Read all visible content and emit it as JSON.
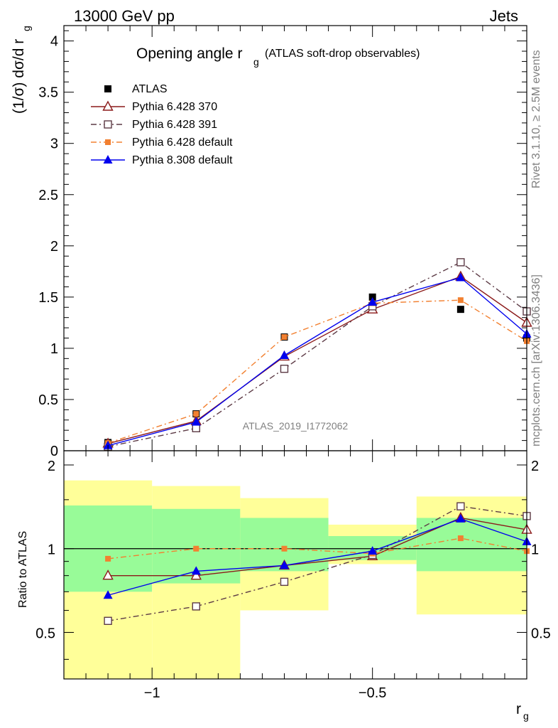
{
  "header": {
    "energy_label": "13000 GeV pp",
    "process_label": "Jets",
    "side_label_top": "Rivet 3.1.10, ≥ 2.5M events",
    "side_label_bottom": "mcplots.cern.ch [arXiv:1306.3436]",
    "analysis_id": "ATLAS_2019_I1772062"
  },
  "chart_data": [
    {
      "type": "line",
      "title_main": "Opening angle r",
      "title_sub": "g",
      "title_paren": "(ATLAS soft-drop observables)",
      "ylabel": "(1/σ) dσ/d r",
      "ylabel_sub": "g",
      "xlim": [
        -1.2,
        -0.15
      ],
      "ylim": [
        0,
        4.15
      ],
      "yticks": [
        0,
        0.5,
        1,
        1.5,
        2,
        2.5,
        3,
        3.5,
        4
      ],
      "ytick_labels": [
        "0",
        "0.5",
        "1",
        "1.5",
        "2",
        "2.5",
        "3",
        "3.5",
        "4"
      ],
      "x": [
        -1.1,
        -0.9,
        -0.7,
        -0.5,
        -0.3,
        -0.15
      ],
      "series": [
        {
          "name": "ATLAS",
          "color": "#000000",
          "marker": "filled-square",
          "line": "none",
          "values": [
            0.08,
            0.36,
            1.11,
            1.5,
            1.38,
            1.1
          ]
        },
        {
          "name": "Pythia 6.428 370",
          "color": "#8b1a1a",
          "marker": "open-triangle",
          "line": "solid",
          "values": [
            0.07,
            0.29,
            0.92,
            1.38,
            1.7,
            1.25
          ]
        },
        {
          "name": "Pythia 6.428 391",
          "color": "#5c3a45",
          "marker": "open-square",
          "line": "dashdot",
          "values": [
            0.04,
            0.22,
            0.8,
            1.41,
            1.84,
            1.36
          ]
        },
        {
          "name": "Pythia 6.428 default",
          "color": "#f28030",
          "marker": "filled-square-small",
          "line": "dashdot",
          "values": [
            0.075,
            0.36,
            1.11,
            1.44,
            1.47,
            1.07
          ]
        },
        {
          "name": "Pythia 8.308 default",
          "color": "#0000ee",
          "marker": "filled-triangle",
          "line": "solid",
          "values": [
            0.05,
            0.28,
            0.93,
            1.45,
            1.69,
            1.14
          ]
        }
      ]
    },
    {
      "type": "line",
      "ylabel": "Ratio to ATLAS",
      "xlabel": "r",
      "xlabel_sub": "g",
      "xlim": [
        -1.2,
        -0.15
      ],
      "ylim": [
        0.34,
        2.25
      ],
      "xticks": [
        -1,
        -0.5
      ],
      "xtick_labels": [
        "−1",
        "−0.5"
      ],
      "yticks": [
        0.5,
        1,
        2
      ],
      "ytick_labels": [
        "0.5",
        "1",
        "2"
      ],
      "bands": [
        {
          "x_low": -1.2,
          "x_high": -1.0,
          "green": [
            0.7,
            1.43
          ],
          "yellow": [
            0.34,
            1.76
          ]
        },
        {
          "x_low": -1.0,
          "x_high": -0.8,
          "green": [
            0.75,
            1.39
          ],
          "yellow": [
            0.34,
            1.68
          ]
        },
        {
          "x_low": -0.8,
          "x_high": -0.6,
          "green": [
            0.83,
            1.29
          ],
          "yellow": [
            0.6,
            1.52
          ]
        },
        {
          "x_low": -0.6,
          "x_high": -0.4,
          "green": [
            0.91,
            1.11
          ],
          "yellow": [
            0.88,
            1.22
          ]
        },
        {
          "x_low": -0.4,
          "x_high": -0.15,
          "green": [
            0.83,
            1.29
          ],
          "yellow": [
            0.58,
            1.54
          ]
        }
      ],
      "x": [
        -1.1,
        -0.9,
        -0.7,
        -0.5,
        -0.3,
        -0.15
      ],
      "series": [
        {
          "name": "Pythia 6.428 370",
          "color": "#8b1a1a",
          "marker": "open-triangle",
          "line": "solid",
          "values": [
            0.8,
            0.8,
            0.87,
            0.94,
            1.29,
            1.17
          ]
        },
        {
          "name": "Pythia 6.428 391",
          "color": "#5c3a45",
          "marker": "open-square",
          "line": "dashdot",
          "values": [
            0.55,
            0.62,
            0.76,
            0.95,
            1.42,
            1.31
          ]
        },
        {
          "name": "Pythia 6.428 default",
          "color": "#f28030",
          "marker": "filled-square-small",
          "line": "dashdot",
          "values": [
            0.92,
            1.0,
            1.0,
            0.96,
            1.09,
            0.98
          ]
        },
        {
          "name": "Pythia 8.308 default",
          "color": "#0000ee",
          "marker": "filled-triangle",
          "line": "solid",
          "values": [
            0.68,
            0.83,
            0.87,
            0.98,
            1.28,
            1.06
          ]
        }
      ]
    }
  ],
  "colors": {
    "band_green": "#98fb98",
    "band_yellow": "#ffff99",
    "frame": "#000000"
  }
}
